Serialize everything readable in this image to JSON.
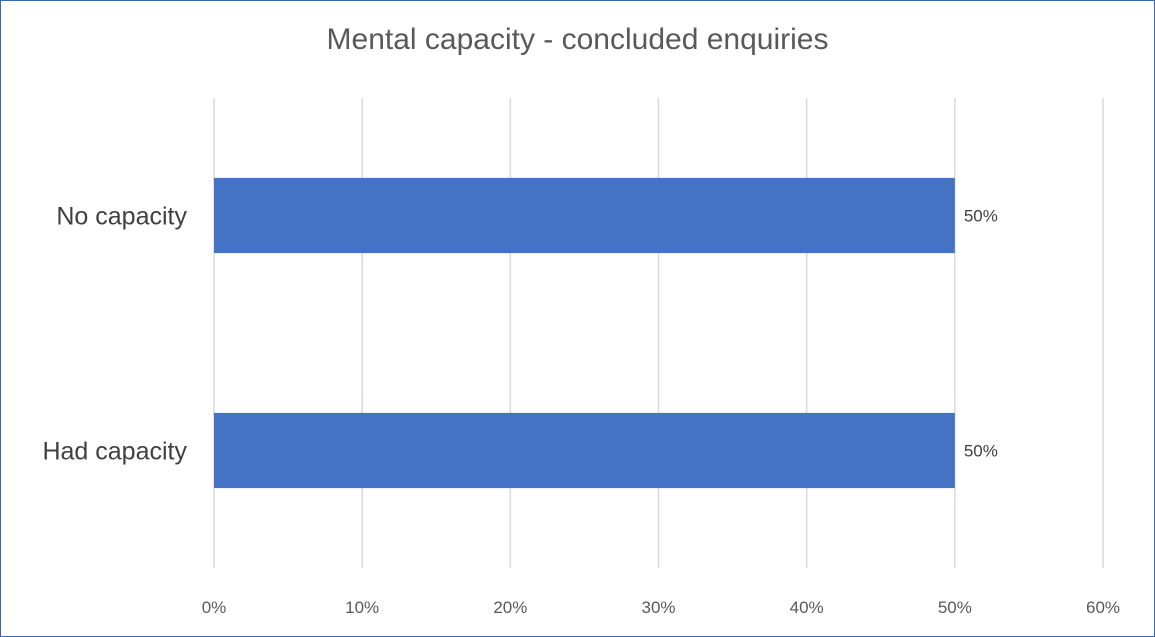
{
  "chart_data": {
    "type": "bar",
    "orientation": "horizontal",
    "title": "Mental capacity - concluded enquiries",
    "categories": [
      "No capacity",
      "Had capacity"
    ],
    "values": [
      50,
      50
    ],
    "data_labels": [
      "50%",
      "50%"
    ],
    "xlim": [
      0,
      60
    ],
    "ticks": [
      0,
      10,
      20,
      30,
      40,
      50,
      60
    ],
    "tick_labels": [
      "0%",
      "10%",
      "20%",
      "30%",
      "40%",
      "50%",
      "60%"
    ],
    "xlabel": "",
    "ylabel": "",
    "grid": "vertical",
    "legend": "none",
    "bar_color": "#4472c4",
    "frame_color": "#3a66b0"
  }
}
